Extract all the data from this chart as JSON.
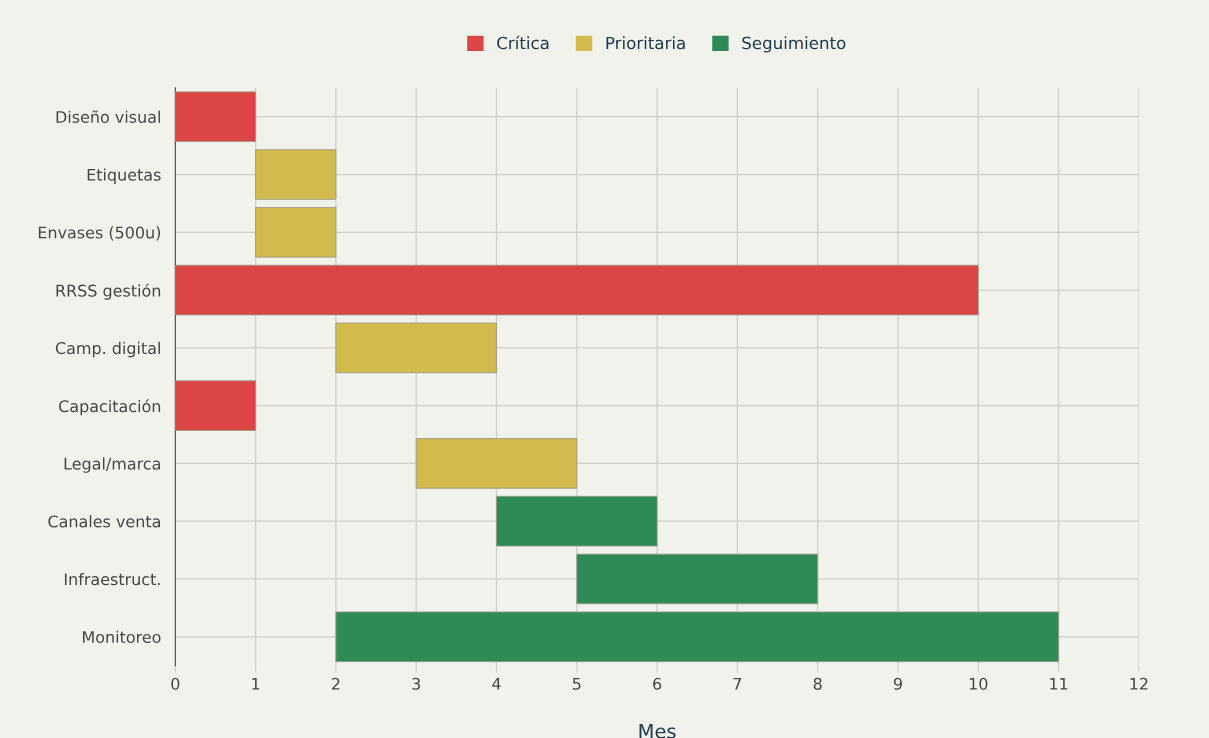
{
  "chart_data": {
    "type": "bar",
    "orientation": "horizontal",
    "xlabel": "Mes",
    "categories": [
      "Diseño visual",
      "Etiquetas",
      "Envases (500u)",
      "RRSS gestión",
      "Camp. digital",
      "Capacitación",
      "Legal/marca",
      "Canales venta",
      "Infraestruct.",
      "Monitoreo"
    ],
    "series": [
      {
        "name": "Crítica",
        "color": "#db4545",
        "base": [
          0,
          null,
          null,
          0,
          null,
          0,
          null,
          null,
          null,
          null
        ],
        "values": [
          1,
          null,
          null,
          10,
          null,
          1,
          null,
          null,
          null,
          null
        ]
      },
      {
        "name": "Prioritaria",
        "color": "#d2ba4c",
        "base": [
          null,
          1,
          1,
          null,
          2,
          null,
          3,
          null,
          null,
          null
        ],
        "values": [
          null,
          1,
          1,
          null,
          2,
          null,
          2,
          null,
          null,
          null
        ]
      },
      {
        "name": "Seguimiento",
        "color": "#2e8b57",
        "base": [
          null,
          null,
          null,
          null,
          null,
          null,
          null,
          4,
          5,
          2
        ],
        "values": [
          null,
          null,
          null,
          null,
          null,
          null,
          null,
          2,
          3,
          9
        ]
      }
    ],
    "xlim": [
      0,
      12
    ],
    "xticks": [
      0,
      1,
      2,
      3,
      4,
      5,
      6,
      7,
      8,
      9,
      10,
      11,
      12
    ],
    "grid": true,
    "legend": "top"
  }
}
